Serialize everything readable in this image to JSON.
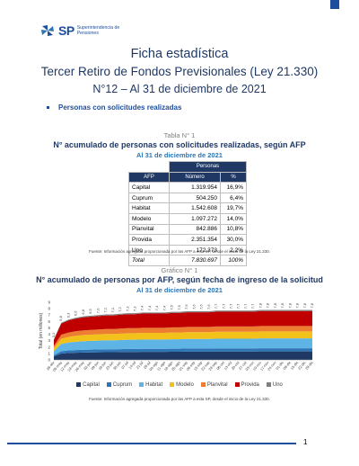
{
  "header": {
    "logo_mark": "SP",
    "logo_line1": "Superintendencia de",
    "logo_line2": "Pensiones"
  },
  "title": {
    "line1": "Ficha estadística",
    "line2": "Tercer Retiro de Fondos Previsionales (Ley 21.330)",
    "line3": "N°12 – Al 31 de diciembre de 2021"
  },
  "section": {
    "bullet": "Personas con solicitudes realizadas"
  },
  "table": {
    "label": "Tabla N° 1",
    "title": "N° acumulado de personas con solicitudes realizadas, según AFP",
    "date": "Al 31 de diciembre de 2021",
    "group_header": "Personas",
    "headers": [
      "AFP",
      "Número",
      "%"
    ],
    "rows": [
      [
        "Capital",
        "1.319.954",
        "16,9%"
      ],
      [
        "Cuprum",
        "504.250",
        "6,4%"
      ],
      [
        "Habitat",
        "1.542.608",
        "19,7%"
      ],
      [
        "Modelo",
        "1.097.272",
        "14,0%"
      ],
      [
        "Planvital",
        "842.886",
        "10,8%"
      ],
      [
        "Provida",
        "2.351.354",
        "30,0%"
      ],
      [
        "Uno",
        "172.373",
        "2,2%"
      ],
      [
        "Total",
        "7.830.697",
        "100%"
      ]
    ],
    "source": "Fuente: Información agregada proporcionada por las AFP a esta SP, desde el inicio de la Ley 21.330."
  },
  "graph": {
    "label": "Gráfico N° 1",
    "title": "N° acumulado de personas por AFP, según fecha de ingreso de la solicitud",
    "date": "Al 31 de diciembre de 2021",
    "source": "Fuente: Información agregada proporcionada por las AFP a esta SP, desde el inicio de la Ley 21.330."
  },
  "chart_data": {
    "type": "area",
    "stacked": true,
    "ylabel": "Total (en millones)",
    "ylim": [
      0,
      9
    ],
    "yticks": [
      0,
      1,
      2,
      3,
      4,
      5,
      6,
      7,
      8,
      9
    ],
    "x": [
      "28-abr",
      "05-may",
      "12-may",
      "19-may",
      "26-may",
      "02-jun",
      "09-jun",
      "16-jun",
      "23-jun",
      "30-jun",
      "07-jul",
      "14-jul",
      "21-jul",
      "28-jul",
      "04-ago",
      "11-ago",
      "18-ago",
      "25-ago",
      "01-sep",
      "08-sep",
      "15-sep",
      "22-sep",
      "29-sep",
      "06-oct",
      "13-oct",
      "20-oct",
      "27-oct",
      "03-nov",
      "10-nov",
      "17-nov",
      "24-nov",
      "01-dic",
      "08-dic",
      "15-dic",
      "22-dic",
      "29-dic"
    ],
    "totals_labels": [
      "3,2",
      "5,8",
      "6,3",
      "6,6",
      "6,8",
      "6,9",
      "7,0",
      "7,1",
      "7,1",
      "7,2",
      "7,3",
      "7,3",
      "7,4",
      "7,4",
      "7,4",
      "7,4",
      "7,5",
      "7,5",
      "7,6",
      "7,6",
      "7,6",
      "7,6",
      "7,7",
      "7,7",
      "7,7",
      "7,7",
      "7,7",
      "7,7",
      "7,8",
      "7,8",
      "7,8",
      "7,8",
      "7,8",
      "7,8",
      "7,8",
      "7,8"
    ],
    "totals": [
      3.2,
      5.8,
      6.3,
      6.6,
      6.8,
      6.9,
      7.0,
      7.1,
      7.1,
      7.2,
      7.3,
      7.3,
      7.4,
      7.4,
      7.4,
      7.4,
      7.5,
      7.5,
      7.6,
      7.6,
      7.6,
      7.6,
      7.7,
      7.7,
      7.7,
      7.7,
      7.7,
      7.7,
      7.8,
      7.8,
      7.8,
      7.8,
      7.8,
      7.8,
      7.8,
      7.8
    ],
    "series_shares": [
      {
        "name": "Capital",
        "share": 0.169,
        "color": "#1f3864"
      },
      {
        "name": "Cuprum",
        "share": 0.064,
        "color": "#2e75b6"
      },
      {
        "name": "Habitat",
        "share": 0.197,
        "color": "#5fb4e6"
      },
      {
        "name": "Modelo",
        "share": 0.14,
        "color": "#f2c21b"
      },
      {
        "name": "Planvital",
        "share": 0.108,
        "color": "#ed7d31"
      },
      {
        "name": "Provida",
        "share": 0.3,
        "color": "#c00000"
      },
      {
        "name": "Uno",
        "share": 0.022,
        "color": "#7f7f7f"
      }
    ]
  }
}
